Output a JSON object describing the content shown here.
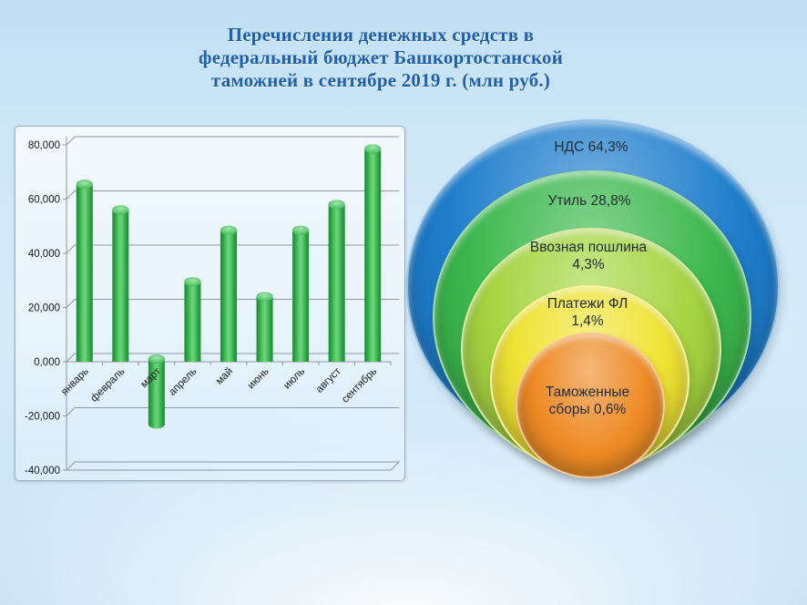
{
  "slide": {
    "title": "Перечисления денежных средств в\nфедеральный бюджет Башкортостанской\nтаможней в сентябре 2019 г. (млн руб.)",
    "title_color": "#1e5fae"
  },
  "chart_data": [
    {
      "type": "bar",
      "style": "3d-cylinder-columns",
      "categories": [
        "январь",
        "февраль",
        "март",
        "апрель",
        "май",
        "июнь",
        "июль",
        "август",
        "сентябрь"
      ],
      "values": [
        64500,
        55000,
        -22000,
        28500,
        47500,
        23000,
        47500,
        57000,
        77500
      ],
      "xlabel": "",
      "ylabel": "",
      "ylim": [
        -40000,
        80000
      ],
      "ytick_step": 20000,
      "ytick_labels": [
        "80,000",
        "60,000",
        "40,000",
        "20,000",
        "0,000",
        "-20,000",
        "-40,000"
      ],
      "grid": true,
      "legend_position": "none",
      "bar_color": "#2fae47"
    },
    {
      "type": "nested-circles",
      "slices": [
        {
          "label": "НДС",
          "value_pct": 64.3,
          "display": "НДС 64,3%",
          "color": "#1f7ecd"
        },
        {
          "label": "Утиль",
          "value_pct": 28.8,
          "display": "Утиль 28,8%",
          "color": "#3cb84d"
        },
        {
          "label": "Ввозная пошлина",
          "value_pct": 4.3,
          "display": "Ввозная пошлина\n4,3%",
          "color": "#a6d542"
        },
        {
          "label": "Платежи ФЛ",
          "value_pct": 1.4,
          "display": "Платежи ФЛ\n1,4%",
          "color": "#f0e334"
        },
        {
          "label": "Таможенные сборы",
          "value_pct": 0.6,
          "display": "Таможенные\nсборы 0,6%",
          "color": "#ee8b26"
        }
      ]
    }
  ]
}
